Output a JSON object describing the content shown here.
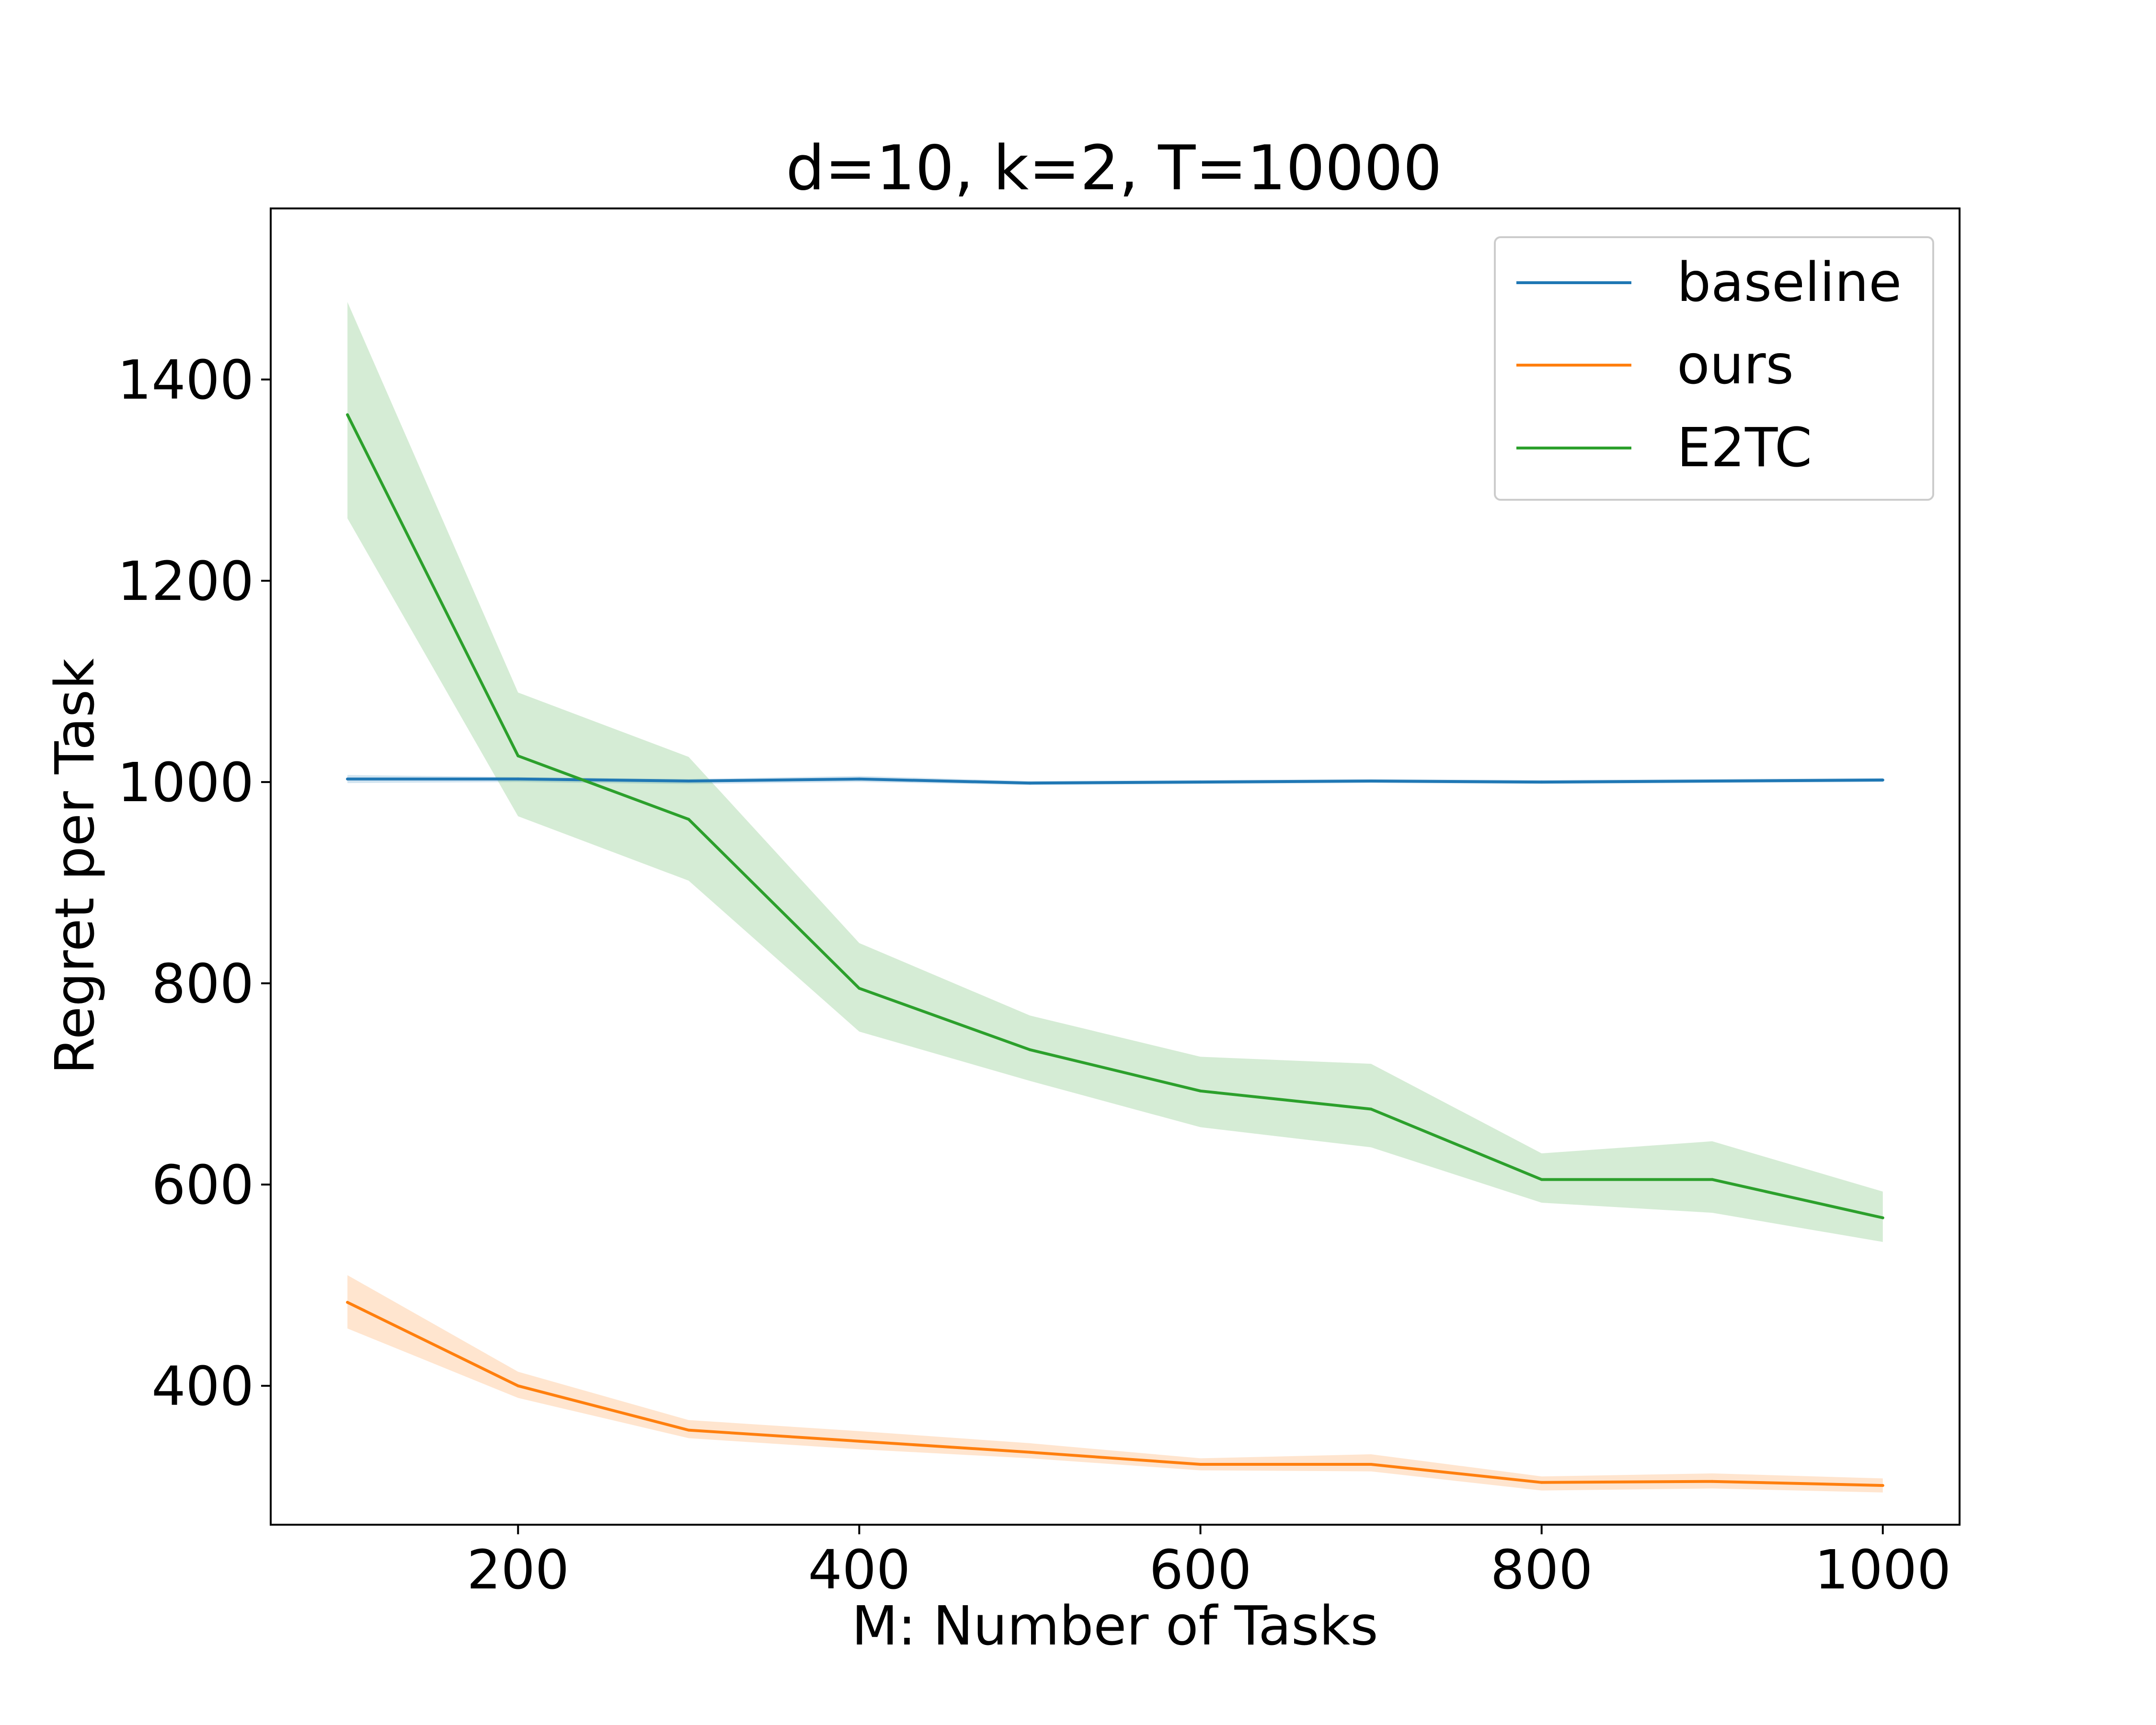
{
  "chart_data": {
    "type": "line",
    "title": "d=10, k=2, T=10000",
    "xlabel": "M: Number of Tasks",
    "ylabel": "Regret per Task",
    "x": [
      100,
      200,
      300,
      400,
      500,
      600,
      700,
      800,
      900,
      1000
    ],
    "xlim": [
      55,
      1045
    ],
    "ylim": [
      262,
      1570
    ],
    "xticks": [
      200,
      400,
      600,
      800,
      1000
    ],
    "yticks": [
      400,
      600,
      800,
      1000,
      1200,
      1400
    ],
    "grid": false,
    "legend_position": "top-right",
    "series": [
      {
        "name": "baseline",
        "color": "#1f77b4",
        "values": [
          1003,
          1003,
          1001,
          1003,
          999,
          1000,
          1001,
          1000,
          1001,
          1002
        ],
        "lower": [
          999,
          1000,
          998,
          1000,
          997,
          998,
          999,
          998,
          999,
          1000
        ],
        "upper": [
          1007,
          1005,
          1003,
          1006,
          1001,
          1002,
          1003,
          1002,
          1003,
          1004
        ]
      },
      {
        "name": "ours",
        "color": "#ff7f0e",
        "values": [
          483,
          400,
          356,
          345,
          334,
          322,
          322,
          304,
          305,
          301
        ],
        "lower": [
          457,
          388,
          348,
          337,
          328,
          316,
          315,
          296,
          298,
          294
        ],
        "upper": [
          510,
          414,
          366,
          355,
          343,
          328,
          332,
          310,
          313,
          308
        ]
      },
      {
        "name": "E2TC",
        "color": "#2ca02c",
        "values": [
          1365,
          1026,
          963,
          795,
          734,
          693,
          675,
          605,
          605,
          567
        ],
        "lower": [
          1262,
          966,
          902,
          752,
          703,
          657,
          637,
          582,
          572,
          543
        ],
        "upper": [
          1477,
          1089,
          1025,
          840,
          768,
          727,
          720,
          631,
          643,
          593
        ]
      }
    ]
  }
}
